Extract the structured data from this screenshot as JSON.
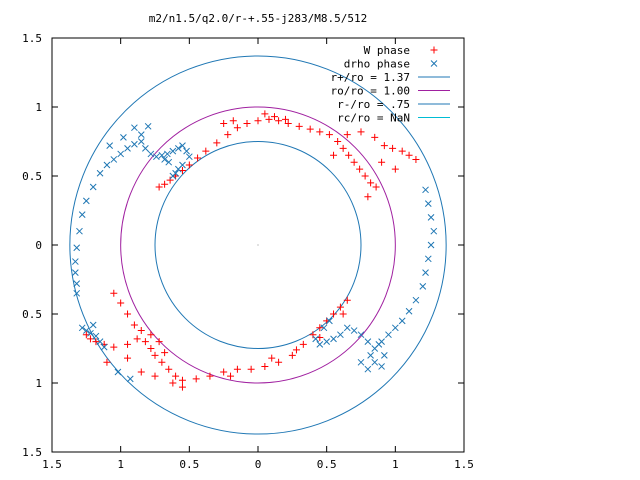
{
  "chart_data": {
    "type": "scatter",
    "title": "m2/n1.5/q2.0/r-+.55-j283/M8.5/512",
    "xlabel": "",
    "ylabel": "",
    "xlim": [
      -1.5,
      1.5
    ],
    "ylim": [
      -1.5,
      1.5
    ],
    "x_ticks": [
      -1.5,
      -1,
      -0.5,
      0,
      0.5,
      1,
      1.5
    ],
    "y_ticks": [
      -1.5,
      -1,
      -0.5,
      0,
      0.5,
      1,
      1.5
    ],
    "x_tick_labels": [
      "1.5",
      "1",
      "0.5",
      "0",
      "0.5",
      "1",
      "1.5"
    ],
    "y_tick_labels": [
      "1.5",
      "1",
      "0.5",
      "0",
      "0.5",
      "1",
      "1.5"
    ],
    "grid": false,
    "legend_position": "top-right",
    "circles": [
      {
        "label": "r+/ro = 1.37",
        "radius": 1.37,
        "color": "#1f77b4"
      },
      {
        "label": "ro/ro = 1.00",
        "radius": 1.0,
        "color": "#a020a0"
      },
      {
        "label": "r-/ro = .75",
        "radius": 0.75,
        "color": "#1f77b4"
      },
      {
        "label": "rc/ro = NaN",
        "radius": null,
        "color": "#00bcd4"
      }
    ],
    "series": [
      {
        "name": "W phase",
        "marker": "plus",
        "color": "#ff0000",
        "points": [
          [
            -0.72,
            0.42
          ],
          [
            -0.68,
            0.44
          ],
          [
            -0.64,
            0.47
          ],
          [
            -0.6,
            0.5
          ],
          [
            -0.55,
            0.54
          ],
          [
            -0.5,
            0.58
          ],
          [
            -0.44,
            0.63
          ],
          [
            -0.38,
            0.68
          ],
          [
            -0.3,
            0.74
          ],
          [
            -0.22,
            0.8
          ],
          [
            -0.15,
            0.85
          ],
          [
            -0.08,
            0.88
          ],
          [
            0,
            0.9
          ],
          [
            0.08,
            0.91
          ],
          [
            0.15,
            0.9
          ],
          [
            0.22,
            0.88
          ],
          [
            0.3,
            0.86
          ],
          [
            0.38,
            0.84
          ],
          [
            0.45,
            0.82
          ],
          [
            0.52,
            0.8
          ],
          [
            0.58,
            0.75
          ],
          [
            0.62,
            0.7
          ],
          [
            0.66,
            0.65
          ],
          [
            0.7,
            0.6
          ],
          [
            0.74,
            0.55
          ],
          [
            0.78,
            0.5
          ],
          [
            0.82,
            0.45
          ],
          [
            0.86,
            0.42
          ],
          [
            0.92,
            0.72
          ],
          [
            0.98,
            0.7
          ],
          [
            1.05,
            0.68
          ],
          [
            1.1,
            0.65
          ],
          [
            1.15,
            0.62
          ],
          [
            -0.25,
            0.88
          ],
          [
            -0.18,
            0.9
          ],
          [
            0.05,
            0.95
          ],
          [
            0.12,
            0.93
          ],
          [
            0.2,
            0.91
          ],
          [
            0.65,
            0.8
          ],
          [
            0.75,
            0.82
          ],
          [
            0.85,
            0.78
          ],
          [
            0.9,
            0.6
          ],
          [
            1.0,
            0.55
          ],
          [
            0.8,
            0.35
          ],
          [
            0.55,
            0.65
          ],
          [
            0.6,
            -0.45
          ],
          [
            0.55,
            -0.5
          ],
          [
            0.5,
            -0.55
          ],
          [
            0.45,
            -0.6
          ],
          [
            0.4,
            -0.65
          ],
          [
            0.33,
            -0.72
          ],
          [
            0.25,
            -0.8
          ],
          [
            0.15,
            -0.85
          ],
          [
            0.05,
            -0.88
          ],
          [
            -0.05,
            -0.9
          ],
          [
            -0.15,
            -0.9
          ],
          [
            -0.25,
            -0.92
          ],
          [
            -0.35,
            -0.95
          ],
          [
            -0.45,
            -0.97
          ],
          [
            -0.55,
            -0.98
          ],
          [
            -0.62,
            -1.0
          ],
          [
            -0.6,
            -0.95
          ],
          [
            -0.65,
            -0.9
          ],
          [
            -0.7,
            -0.85
          ],
          [
            -0.75,
            -0.8
          ],
          [
            -0.78,
            -0.75
          ],
          [
            -0.82,
            -0.7
          ],
          [
            -0.88,
            -0.68
          ],
          [
            -0.95,
            -0.72
          ],
          [
            -1.05,
            -0.74
          ],
          [
            -1.12,
            -0.72
          ],
          [
            -1.18,
            -0.7
          ],
          [
            -1.22,
            -0.68
          ],
          [
            -1.25,
            -0.65
          ],
          [
            -1.05,
            -0.35
          ],
          [
            -1.0,
            -0.42
          ],
          [
            -0.95,
            -0.5
          ],
          [
            -0.9,
            -0.58
          ],
          [
            -0.85,
            -0.62
          ],
          [
            -0.78,
            -0.65
          ],
          [
            -0.72,
            -0.7
          ],
          [
            -0.68,
            -0.78
          ],
          [
            -1.1,
            -0.85
          ],
          [
            -0.95,
            -0.82
          ],
          [
            -0.85,
            -0.92
          ],
          [
            -0.75,
            -0.95
          ],
          [
            -0.55,
            -1.03
          ],
          [
            -0.2,
            -0.95
          ],
          [
            0.1,
            -0.82
          ],
          [
            0.28,
            -0.76
          ],
          [
            0.45,
            -0.67
          ],
          [
            0.65,
            -0.4
          ],
          [
            0.62,
            -0.5
          ]
        ]
      },
      {
        "name": "drho phase",
        "marker": "cross",
        "color": "#1f77b4",
        "points": [
          [
            -1.28,
            -0.6
          ],
          [
            -1.25,
            -0.62
          ],
          [
            -1.22,
            -0.64
          ],
          [
            -1.2,
            -0.58
          ],
          [
            -1.18,
            -0.66
          ],
          [
            -1.15,
            -0.7
          ],
          [
            -1.12,
            -0.74
          ],
          [
            -1.32,
            -0.35
          ],
          [
            -1.32,
            -0.28
          ],
          [
            -1.33,
            -0.2
          ],
          [
            -1.33,
            -0.12
          ],
          [
            -1.32,
            -0.02
          ],
          [
            -1.3,
            0.1
          ],
          [
            -1.28,
            0.22
          ],
          [
            -1.25,
            0.32
          ],
          [
            -1.2,
            0.42
          ],
          [
            -1.15,
            0.52
          ],
          [
            -1.1,
            0.58
          ],
          [
            -1.05,
            0.62
          ],
          [
            -1.0,
            0.66
          ],
          [
            -0.95,
            0.7
          ],
          [
            -0.9,
            0.73
          ],
          [
            -0.85,
            0.75
          ],
          [
            -0.82,
            0.7
          ],
          [
            -0.78,
            0.66
          ],
          [
            -0.74,
            0.64
          ],
          [
            -0.7,
            0.65
          ],
          [
            -0.66,
            0.66
          ],
          [
            -0.62,
            0.68
          ],
          [
            -0.58,
            0.7
          ],
          [
            -0.55,
            0.72
          ],
          [
            -0.52,
            0.68
          ],
          [
            -0.5,
            0.64
          ],
          [
            -0.55,
            0.58
          ],
          [
            -0.58,
            0.55
          ],
          [
            -0.6,
            0.52
          ],
          [
            -0.62,
            0.5
          ],
          [
            -0.65,
            0.6
          ],
          [
            -0.68,
            0.62
          ],
          [
            -0.85,
            0.8
          ],
          [
            -0.9,
            0.85
          ],
          [
            -0.98,
            0.78
          ],
          [
            -1.08,
            0.72
          ],
          [
            -0.8,
            0.86
          ],
          [
            1.22,
            0.4
          ],
          [
            1.24,
            0.3
          ],
          [
            1.26,
            0.2
          ],
          [
            1.28,
            0.1
          ],
          [
            1.26,
            0.0
          ],
          [
            1.24,
            -0.1
          ],
          [
            1.22,
            -0.2
          ],
          [
            1.2,
            -0.3
          ],
          [
            1.15,
            -0.4
          ],
          [
            1.1,
            -0.48
          ],
          [
            1.05,
            -0.55
          ],
          [
            1.0,
            -0.6
          ],
          [
            0.95,
            -0.65
          ],
          [
            0.9,
            -0.7
          ],
          [
            0.85,
            -0.75
          ],
          [
            0.82,
            -0.8
          ],
          [
            0.85,
            -0.85
          ],
          [
            0.9,
            -0.88
          ],
          [
            0.92,
            -0.8
          ],
          [
            0.88,
            -0.72
          ],
          [
            0.8,
            -0.7
          ],
          [
            0.75,
            -0.65
          ],
          [
            0.7,
            -0.62
          ],
          [
            0.65,
            -0.6
          ],
          [
            0.6,
            -0.65
          ],
          [
            0.55,
            -0.68
          ],
          [
            0.5,
            -0.7
          ],
          [
            0.45,
            -0.72
          ],
          [
            0.42,
            -0.68
          ],
          [
            0.48,
            -0.6
          ],
          [
            0.52,
            -0.55
          ],
          [
            0.8,
            -0.9
          ],
          [
            0.75,
            -0.85
          ],
          [
            -0.93,
            -0.97
          ],
          [
            -1.02,
            -0.92
          ]
        ]
      }
    ]
  }
}
